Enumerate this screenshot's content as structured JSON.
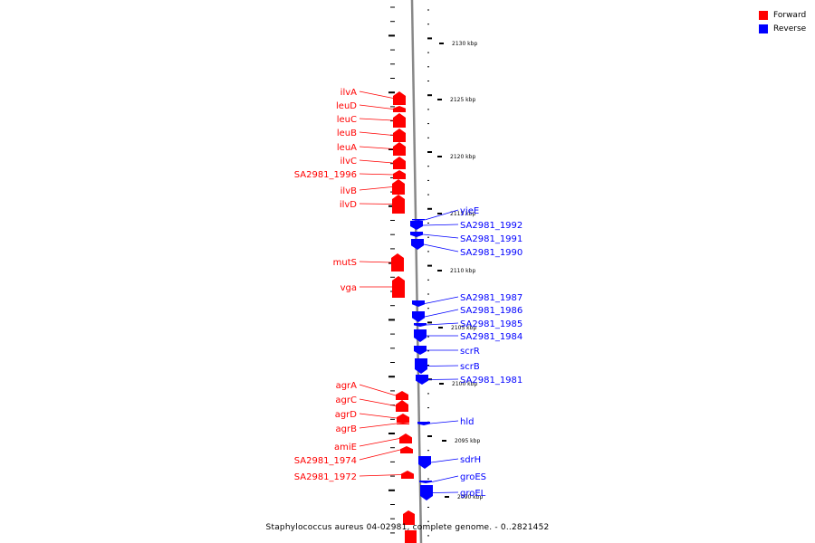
{
  "legend": {
    "forward": {
      "label": "Forward",
      "color": "#ff0000"
    },
    "reverse": {
      "label": "Reverse",
      "color": "#0000ff"
    }
  },
  "caption": "Staphylococcus aureus 04-02981, complete genome. - 0..2821452",
  "scale": {
    "unit": "kbp",
    "ticks": [
      2130,
      2125,
      2120,
      2115,
      2110,
      2105,
      2100,
      2095,
      2090
    ]
  },
  "colors": {
    "forward": "#ff0000",
    "reverse": "#0000ff",
    "backbone": "#888888"
  },
  "forward_genes": [
    {
      "name": "ilvA"
    },
    {
      "name": "leuD"
    },
    {
      "name": "leuC"
    },
    {
      "name": "leuB"
    },
    {
      "name": "leuA"
    },
    {
      "name": "ilvC"
    },
    {
      "name": "SA2981_1996"
    },
    {
      "name": "ilvB"
    },
    {
      "name": "ilvD"
    },
    {
      "name": "mutS"
    },
    {
      "name": "vga"
    },
    {
      "name": "agrA"
    },
    {
      "name": "agrC"
    },
    {
      "name": "agrD"
    },
    {
      "name": "agrB"
    },
    {
      "name": "amiE"
    },
    {
      "name": "SA2981_1974"
    },
    {
      "name": "SA2981_1972"
    }
  ],
  "reverse_genes": [
    {
      "name": "yjeE"
    },
    {
      "name": "SA2981_1992"
    },
    {
      "name": "SA2981_1991"
    },
    {
      "name": "SA2981_1990"
    },
    {
      "name": "SA2981_1987"
    },
    {
      "name": "SA2981_1986"
    },
    {
      "name": "SA2981_1985"
    },
    {
      "name": "SA2981_1984"
    },
    {
      "name": "scrR"
    },
    {
      "name": "scrB"
    },
    {
      "name": "SA2981_1981"
    },
    {
      "name": "hld"
    },
    {
      "name": "sdrH"
    },
    {
      "name": "groES"
    },
    {
      "name": "groEL"
    }
  ]
}
